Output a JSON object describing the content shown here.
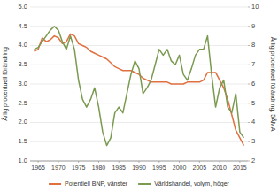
{
  "chart_data": {
    "type": "line",
    "x": [
      1964,
      1965,
      1966,
      1967,
      1968,
      1969,
      1970,
      1971,
      1972,
      1973,
      1974,
      1975,
      1976,
      1977,
      1978,
      1979,
      1980,
      1981,
      1982,
      1983,
      1984,
      1985,
      1986,
      1987,
      1988,
      1989,
      1990,
      1991,
      1992,
      1993,
      1994,
      1995,
      1996,
      1997,
      1998,
      1999,
      2000,
      2001,
      2002,
      2003,
      2004,
      2005,
      2006,
      2007,
      2008,
      2009,
      2010,
      2011,
      2012,
      2013,
      2014,
      2015,
      2016
    ],
    "series": [
      {
        "name": "Potentiell BNP, vänster",
        "color": "#e07040",
        "values": [
          3.85,
          3.9,
          4.2,
          4.1,
          4.15,
          4.25,
          4.2,
          4.05,
          4.1,
          4.3,
          4.25,
          4.05,
          4.0,
          3.95,
          3.85,
          3.8,
          3.75,
          3.7,
          3.65,
          3.55,
          3.45,
          3.4,
          3.35,
          3.35,
          3.35,
          3.3,
          3.25,
          3.15,
          3.1,
          3.05,
          3.05,
          3.05,
          3.05,
          3.05,
          3.0,
          3.0,
          3.0,
          3.0,
          3.05,
          3.05,
          3.05,
          3.05,
          3.1,
          3.3,
          3.3,
          3.3,
          3.1,
          2.9,
          2.6,
          2.2,
          1.8,
          1.6,
          1.4
        ]
      },
      {
        "name": "Världshandel, volym, höger",
        "color": "#7a9a50",
        "axis": "y2",
        "values": [
          7.8,
          7.9,
          8.2,
          8.5,
          8.8,
          9.0,
          8.8,
          8.2,
          7.8,
          8.5,
          7.8,
          6.2,
          5.2,
          4.8,
          5.2,
          5.8,
          4.8,
          3.5,
          2.8,
          3.2,
          4.5,
          4.8,
          4.5,
          5.5,
          6.5,
          7.2,
          6.8,
          5.5,
          5.8,
          6.2,
          7.0,
          7.8,
          7.5,
          7.8,
          7.2,
          7.0,
          7.5,
          6.5,
          6.2,
          6.8,
          7.5,
          7.8,
          7.8,
          8.5,
          6.5,
          4.8,
          5.8,
          6.2,
          4.8,
          4.5,
          5.5,
          3.5,
          3.2
        ]
      }
    ],
    "ylabel": "Årlig procentuell förändring",
    "y2label": "Årlig procentuell förändring, 5ÅMA",
    "xlim": [
      1963,
      2017
    ],
    "xticks": [
      1965,
      1970,
      1975,
      1980,
      1985,
      1990,
      1995,
      2000,
      2005,
      2010,
      2015
    ],
    "ylim": [
      1.0,
      5.0
    ],
    "yticks": [
      {
        "value": 1.0,
        "label": "1.0"
      },
      {
        "value": 1.5,
        "label": "1.5"
      },
      {
        "value": 2.0,
        "label": "2.0"
      },
      {
        "value": 2.5,
        "label": "2.5"
      },
      {
        "value": 3.0,
        "label": "3.0"
      },
      {
        "value": 3.5,
        "label": "3.5"
      },
      {
        "value": 4.0,
        "label": "4.0"
      },
      {
        "value": 4.5,
        "label": "4.5"
      },
      {
        "value": 5.0,
        "label": "5.0"
      }
    ],
    "y2lim": [
      2,
      10
    ],
    "y2ticks": [
      2,
      3,
      4,
      5,
      6,
      7,
      8,
      9,
      10
    ],
    "grid": true,
    "legend": "bottom"
  }
}
